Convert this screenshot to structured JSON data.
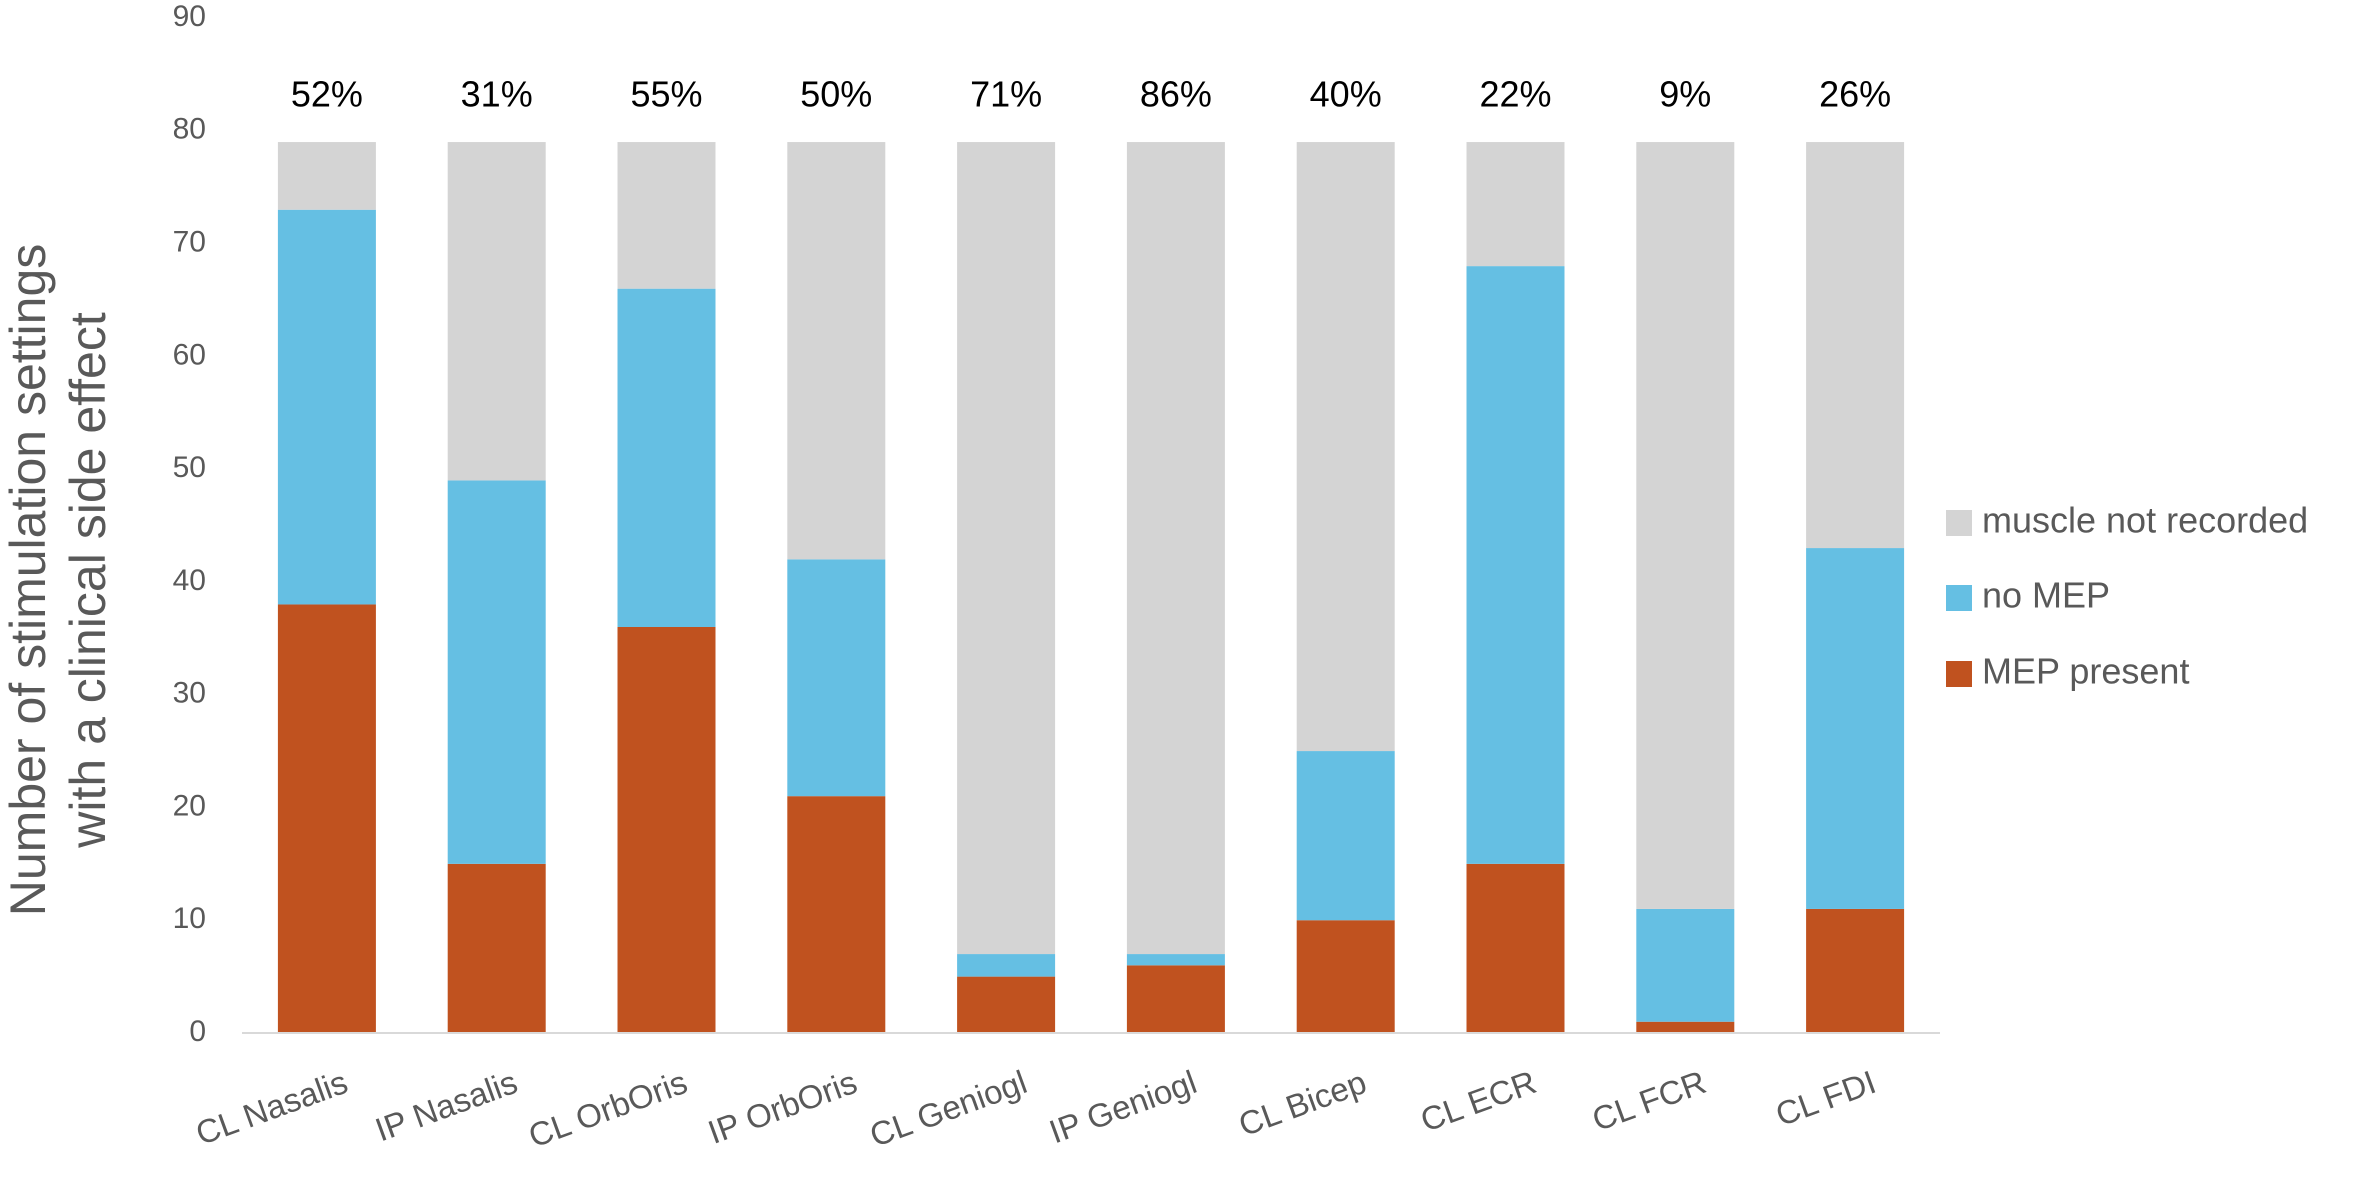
{
  "chart_data": {
    "type": "stacked_bar",
    "ylabel": [
      "Number of stimulation settings",
      "with a clinical side effect"
    ],
    "categories": [
      "CL Nasalis",
      "IP Nasalis",
      "CL OrbOris",
      "IP OrbOris",
      "CL Geniogl",
      "IP Geniogl",
      "CL Bicep",
      "CL ECR",
      "CL FCR",
      "CL FDI"
    ],
    "series": [
      {
        "name": "MEP present",
        "color": "#c0521f",
        "values": [
          38,
          15,
          36,
          21,
          5,
          6,
          10,
          15,
          1,
          11
        ]
      },
      {
        "name": "no MEP",
        "color": "#65bfe3",
        "values": [
          35,
          34,
          30,
          21,
          2,
          1,
          15,
          53,
          10,
          32
        ]
      },
      {
        "name": "muscle not recorded",
        "color": "#d4d4d4",
        "values": [
          6,
          30,
          13,
          37,
          72,
          72,
          54,
          11,
          68,
          36
        ]
      }
    ],
    "annotations": [
      "52%",
      "31%",
      "55%",
      "50%",
      "71%",
      "86%",
      "40%",
      "22%",
      "9%",
      "26%"
    ],
    "ylim": [
      0,
      90
    ],
    "yticks": [
      0,
      10,
      20,
      30,
      40,
      50,
      60,
      70,
      80,
      90
    ],
    "grid": false,
    "legend": "right"
  }
}
